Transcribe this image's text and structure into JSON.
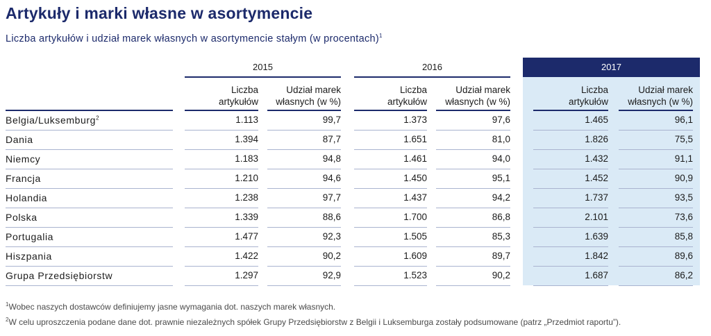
{
  "title": "Artykuły i marki własne w asortymencie",
  "subtitle": "Liczba artykułów i udział marek własnych w asortymencie stałym (w procentach)",
  "subtitle_footnote": "1",
  "years": [
    "2015",
    "2016",
    "2017"
  ],
  "column_headers": {
    "items_line1": "Liczba",
    "items_line2": "artykułów",
    "share_line1": "Udział marek",
    "share_line2": "własnych (w %)"
  },
  "rows": [
    {
      "label": "Belgia/Luksemburg",
      "footnote": "2",
      "values": [
        "1.113",
        "99,7",
        "1.373",
        "97,6",
        "1.465",
        "96,1"
      ]
    },
    {
      "label": "Dania",
      "footnote": "",
      "values": [
        "1.394",
        "87,7",
        "1.651",
        "81,0",
        "1.826",
        "75,5"
      ]
    },
    {
      "label": "Niemcy",
      "footnote": "",
      "values": [
        "1.183",
        "94,8",
        "1.461",
        "94,0",
        "1.432",
        "91,1"
      ]
    },
    {
      "label": "Francja",
      "footnote": "",
      "values": [
        "1.210",
        "94,6",
        "1.450",
        "95,1",
        "1.452",
        "90,9"
      ]
    },
    {
      "label": "Holandia",
      "footnote": "",
      "values": [
        "1.238",
        "97,7",
        "1.437",
        "94,2",
        "1.737",
        "93,5"
      ]
    },
    {
      "label": "Polska",
      "footnote": "",
      "values": [
        "1.339",
        "88,6",
        "1.700",
        "86,8",
        "2.101",
        "73,6"
      ]
    },
    {
      "label": "Portugalia",
      "footnote": "",
      "values": [
        "1.477",
        "92,3",
        "1.505",
        "85,3",
        "1.639",
        "85,8"
      ]
    },
    {
      "label": "Hiszpania",
      "footnote": "",
      "values": [
        "1.422",
        "90,2",
        "1.609",
        "89,7",
        "1.842",
        "89,6"
      ]
    },
    {
      "label": "Grupa Przedsiębiorstw",
      "footnote": "",
      "values": [
        "1.297",
        "92,9",
        "1.523",
        "90,2",
        "1.687",
        "86,2"
      ]
    }
  ],
  "footnotes": [
    {
      "mark": "1",
      "text": "Wobec naszych dostawców definiujemy jasne wymagania dot. naszych marek własnych."
    },
    {
      "mark": "2",
      "text": "W celu uproszczenia podane dane dot. prawnie niezależnych spółek Grupy Przedsiębiorstw z Belgii i Luksemburga zostały podsumowane (patrz „Przedmiot raportu”)."
    }
  ],
  "colors": {
    "accent": "#1c2a6b",
    "highlight": "#daeaf6"
  }
}
